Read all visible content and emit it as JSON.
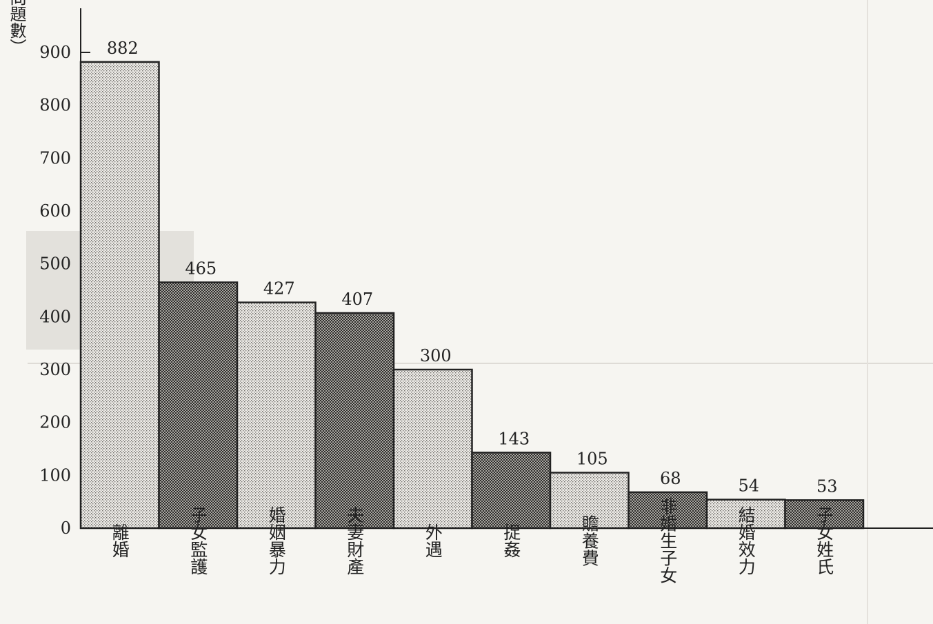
{
  "chart_data": {
    "type": "bar",
    "title": "",
    "xlabel": "",
    "ylabel": "（問題數）",
    "ylim": [
      0,
      900
    ],
    "yticks": [
      0,
      100,
      200,
      300,
      400,
      500,
      600,
      700,
      800,
      900
    ],
    "grid": false,
    "categories": [
      "離婚",
      "子女監護",
      "婚姻暴力",
      "夫妻財產",
      "外遇",
      "捉姦",
      "贍養費",
      "非婚生子女",
      "結婚效力",
      "子女姓氏"
    ],
    "values": [
      882,
      465,
      427,
      407,
      300,
      143,
      105,
      68,
      54,
      53
    ],
    "bar_patterns": [
      "light",
      "dark",
      "light",
      "dark",
      "light",
      "dark",
      "light",
      "dark",
      "light",
      "dark"
    ]
  },
  "colors": {
    "background": "#f6f5f1",
    "ink": "#222222",
    "bar_light": "#d9d7d2",
    "bar_dark": "#8f8d89"
  }
}
